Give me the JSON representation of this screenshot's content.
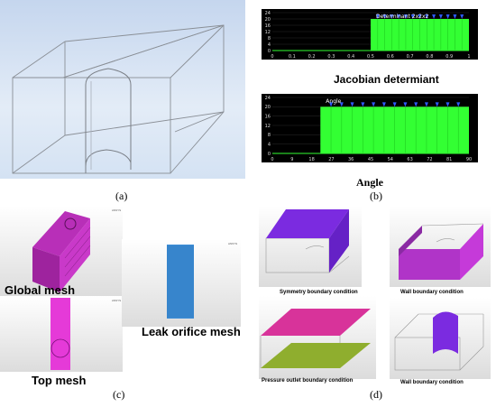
{
  "captions": {
    "a": "(a)",
    "b": "(b)",
    "c": "(c)",
    "d": "(d)"
  },
  "colors": {
    "mesh_green": "#33ff33",
    "mesh_magenta": "#cc33cc",
    "mesh_blue": "#3c8ed8",
    "bc_purple": "#7b2be0",
    "bc_green": "#8fae2e"
  },
  "charts": {
    "top": {
      "title": "Jacobian determiant",
      "annotation": "Determinant 2x2x2",
      "side_labels": [
        "",
        ""
      ],
      "y_ticks": [
        "0",
        "4",
        "8",
        "12",
        "16",
        "20",
        "24"
      ],
      "x_ticks": [
        "0",
        "0.1",
        "0.2",
        "0.3",
        "0.4",
        "0.5",
        "0.6",
        "0.7",
        "0.8",
        "0.9",
        "1"
      ]
    },
    "bottom": {
      "title": "Angle",
      "annotation": "Angle",
      "side_labels": [
        "",
        ""
      ],
      "y_ticks": [
        "0",
        "4",
        "8",
        "12",
        "16",
        "20",
        "24"
      ],
      "x_ticks": [
        "0",
        "9",
        "18",
        "27",
        "36",
        "45",
        "54",
        "63",
        "72",
        "81",
        "90"
      ]
    }
  },
  "chart_data": [
    {
      "type": "bar",
      "title": "Jacobian determiant",
      "xlabel": "",
      "ylabel": "",
      "xlim": [
        0,
        1
      ],
      "ylim": [
        0,
        24
      ],
      "x_ticks": [
        0,
        0.1,
        0.2,
        0.3,
        0.4,
        0.5,
        0.6,
        0.7,
        0.8,
        0.9,
        1
      ],
      "y_ticks": [
        0,
        4,
        8,
        12,
        16,
        20,
        24
      ],
      "bins": [
        [
          0.5,
          1.0
        ]
      ],
      "values": [
        20
      ]
    },
    {
      "type": "bar",
      "title": "Angle",
      "xlabel": "",
      "ylabel": "",
      "xlim": [
        0,
        90
      ],
      "ylim": [
        0,
        24
      ],
      "x_ticks": [
        0,
        9,
        18,
        27,
        36,
        45,
        54,
        63,
        72,
        81,
        90
      ],
      "y_ticks": [
        0,
        4,
        8,
        12,
        16,
        20,
        24
      ],
      "bins": [
        [
          22,
          90
        ]
      ],
      "values": [
        20
      ]
    }
  ],
  "mesh_labels": {
    "global": "Global mesh",
    "top": "Top mesh",
    "orifice": "Leak orifice mesh"
  },
  "bc_labels": {
    "symmetry": "Symmetry boundary condition",
    "wall1": "Wall boundary condition",
    "pressure": "Pressure outlet boundary condition",
    "wall2": "Wall boundary condition"
  }
}
